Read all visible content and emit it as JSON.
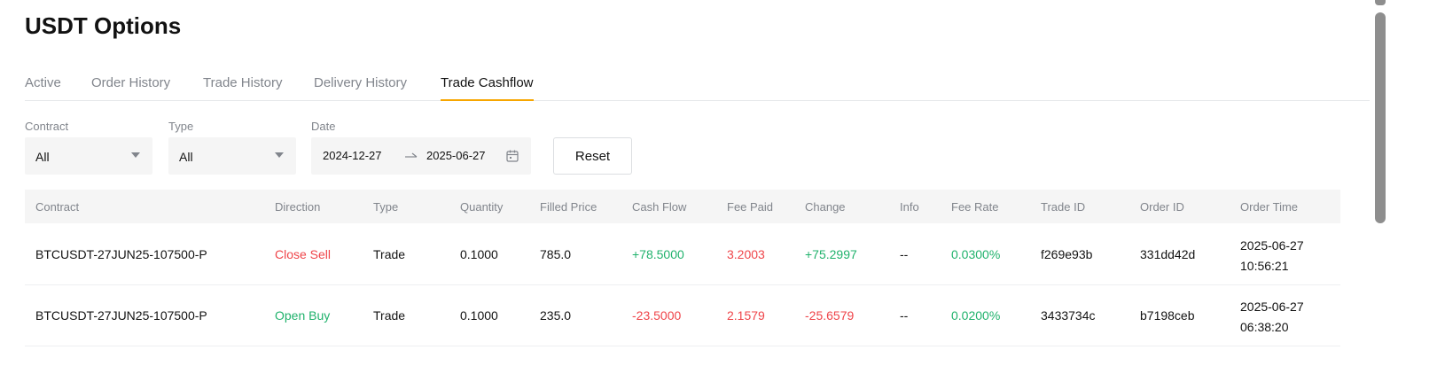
{
  "page": {
    "title": "USDT Options"
  },
  "tabs": [
    {
      "label": "Active",
      "active": false
    },
    {
      "label": "Order History",
      "active": false
    },
    {
      "label": "Trade History",
      "active": false
    },
    {
      "label": "Delivery History",
      "active": false
    },
    {
      "label": "Trade Cashflow",
      "active": true
    }
  ],
  "filters": {
    "contract": {
      "label": "Contract",
      "value": "All"
    },
    "type": {
      "label": "Type",
      "value": "All"
    },
    "date": {
      "label": "Date",
      "start": "2024-12-27",
      "end": "2025-06-27"
    },
    "reset_label": "Reset"
  },
  "table": {
    "columns": [
      "Contract",
      "Direction",
      "Type",
      "Quantity",
      "Filled Price",
      "Cash Flow",
      "Fee Paid",
      "Change",
      "Info",
      "Fee Rate",
      "Trade ID",
      "Order ID",
      "Order Time"
    ],
    "rows": [
      {
        "contract": "BTCUSDT-27JUN25-107500-P",
        "direction": "Close Sell",
        "type": "Trade",
        "quantity": "0.1000",
        "filled_price": "785.0",
        "cash_flow": "+78.5000",
        "fee_paid": "3.2003",
        "change": "+75.2997",
        "info": "--",
        "fee_rate": "0.0300%",
        "trade_id": "f269e93b",
        "order_id": "331dd42d",
        "order_date": "2025-06-27",
        "order_clock": "10:56:21"
      },
      {
        "contract": "BTCUSDT-27JUN25-107500-P",
        "direction": "Open Buy",
        "type": "Trade",
        "quantity": "0.1000",
        "filled_price": "235.0",
        "cash_flow": "-23.5000",
        "fee_paid": "2.1579",
        "change": "-25.6579",
        "info": "--",
        "fee_rate": "0.0200%",
        "trade_id": "3433734c",
        "order_id": "b7198ceb",
        "order_date": "2025-06-27",
        "order_clock": "06:38:20"
      }
    ]
  },
  "colors": {
    "accent": "#f7a600",
    "positive": "#20b26c",
    "negative": "#ef454a",
    "muted": "#81858c"
  },
  "icons": {
    "select_caret": "caret-down-icon",
    "date_separator": "arrow-right-icon",
    "calendar": "calendar-icon"
  }
}
